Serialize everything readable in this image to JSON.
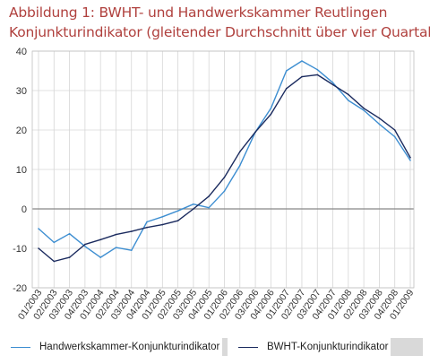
{
  "title_line1": "Abbildung 1: BWHT- und Handwerkskammer  Reutlingen",
  "title_line2": "Konjunkturindikator (gleitender Durchschnitt über vier Quartale)",
  "colors": {
    "title": "#b0413e",
    "series_light": "#3d8ed1",
    "series_dark": "#1a2a5e",
    "grid": "#d6d6d6",
    "zero": "#888888",
    "legend_bg": "#d9d9d9"
  },
  "chart_data": {
    "type": "line",
    "title": "",
    "xlabel": "",
    "ylabel": "",
    "ylim": [
      -20,
      40
    ],
    "yticks": [
      -20,
      -10,
      0,
      10,
      20,
      30,
      40
    ],
    "grid": true,
    "legend_position": "bottom",
    "categories": [
      "01/2003",
      "02/2003",
      "03/2003",
      "04/2003",
      "01/2004",
      "02/2004",
      "03/2004",
      "04/2004",
      "01/2005",
      "02/2005",
      "03/2005",
      "04/2005",
      "01/2006",
      "02/2006",
      "03/2006",
      "04/2006",
      "01/2007",
      "02/2007",
      "03/2007",
      "04/2007",
      "01/2008",
      "02/2008",
      "03/2008",
      "04/2008",
      "01/2009"
    ],
    "series": [
      {
        "name": "Handwerkskammer-Konjunkturindikator",
        "color": "#3d8ed1",
        "values": [
          -5,
          -8.5,
          -6.3,
          -9.5,
          -12.3,
          -9.8,
          -10.5,
          -3.3,
          -2,
          -0.5,
          1.2,
          0.3,
          4.5,
          11,
          19.5,
          25.5,
          35,
          37.5,
          35.3,
          32,
          27.5,
          25,
          21.5,
          18.3,
          12.3
        ]
      },
      {
        "name": "BWHT-Konjunkturindikator",
        "color": "#1a2a5e",
        "values": [
          -10,
          -13.3,
          -12.3,
          -9,
          -7.8,
          -6.5,
          -5.7,
          -4.7,
          -4,
          -3,
          0,
          3.2,
          8,
          14.5,
          19.5,
          24,
          30.5,
          33.5,
          34,
          31.5,
          29,
          25.5,
          23,
          20,
          13
        ]
      }
    ]
  },
  "legend": {
    "items": [
      {
        "label": "Handwerkskammer-Konjunkturindikator",
        "color": "#3d8ed1"
      },
      {
        "label": "BWHT-Konjunkturindikator",
        "color": "#1a2a5e"
      }
    ]
  }
}
